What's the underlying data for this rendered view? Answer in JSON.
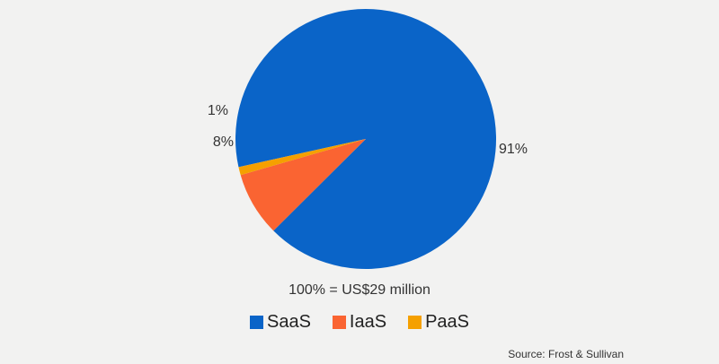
{
  "chart_data": {
    "type": "pie",
    "slices": [
      {
        "label": "SaaS",
        "value": 91,
        "label_text": "91%",
        "color": "#0a64c8"
      },
      {
        "label": "IaaS",
        "value": 8,
        "label_text": "8%",
        "color": "#fa6432"
      },
      {
        "label": "PaaS",
        "value": 1,
        "label_text": "1%",
        "color": "#f5a000"
      }
    ],
    "total_label": "100% = US$29 million",
    "legend_position": "bottom",
    "source": "Source: Frost & Sullivan"
  }
}
